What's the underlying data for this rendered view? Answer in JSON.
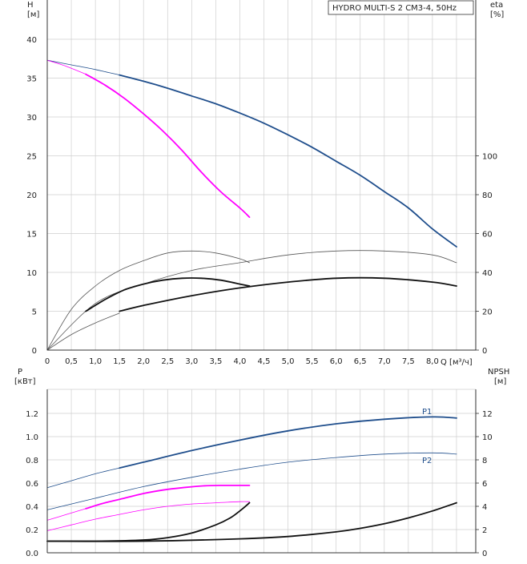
{
  "chart_data": [
    {
      "type": "line",
      "title": "HYDRO MULTI-S 2 CM3-4, 50Hz",
      "left_axis": {
        "label": "H",
        "unit": "[м]",
        "ylim": [
          0,
          40
        ],
        "ticks": [
          "0",
          "5",
          "10",
          "15",
          "20",
          "25",
          "30",
          "35",
          "40"
        ]
      },
      "right_axis": {
        "label": "eta",
        "unit": "[%]",
        "ylim": [
          0,
          160
        ],
        "ticks": [
          "0",
          "20",
          "40",
          "60",
          "80",
          "100"
        ]
      },
      "x_axis": {
        "label": "Q [м³/ч]",
        "xlim": [
          0,
          8.9
        ],
        "ticks": [
          "0",
          "0,5",
          "1,0",
          "1,5",
          "2,0",
          "2,5",
          "3,0",
          "3,5",
          "4,0",
          "4,5",
          "5,0",
          "5,5",
          "6,0",
          "6,5",
          "7,0",
          "7,5",
          "8,0"
        ]
      },
      "grid": true,
      "series": [
        {
          "name": "H full speed (thin)",
          "axis": "left",
          "color": "#1f4e8c",
          "width": 0.8,
          "x": [
            0,
            0.5,
            1.0,
            1.5
          ],
          "y": [
            37.3,
            36.7,
            36.1,
            35.4
          ]
        },
        {
          "name": "H full speed",
          "axis": "left",
          "color": "#1f4e8c",
          "width": 1.8,
          "x": [
            1.5,
            2.0,
            2.5,
            3.0,
            3.5,
            4.0,
            4.5,
            5.0,
            5.5,
            6.0,
            6.5,
            7.0,
            7.5,
            8.0,
            8.5
          ],
          "y": [
            35.4,
            34.6,
            33.7,
            32.7,
            31.7,
            30.5,
            29.2,
            27.7,
            26.1,
            24.3,
            22.5,
            20.4,
            18.3,
            15.6,
            13.3
          ]
        },
        {
          "name": "H reduced speed (thin)",
          "axis": "left",
          "color": "#ff00ff",
          "width": 0.8,
          "x": [
            0,
            0.4,
            0.8
          ],
          "y": [
            37.3,
            36.5,
            35.5
          ]
        },
        {
          "name": "H reduced speed",
          "axis": "left",
          "color": "#ff00ff",
          "width": 1.8,
          "x": [
            0.8,
            1.2,
            1.6,
            2.0,
            2.4,
            2.8,
            3.2,
            3.6,
            4.0,
            4.2
          ],
          "y": [
            35.5,
            34.1,
            32.4,
            30.4,
            28.2,
            25.7,
            22.9,
            20.4,
            18.3,
            17.1
          ]
        },
        {
          "name": "eta (thin, reduced)",
          "axis": "right",
          "color": "#555555",
          "width": 0.8,
          "x": [
            0,
            0.5,
            1.0,
            1.5,
            2.0,
            2.5,
            3.0,
            3.5,
            4.0,
            4.2
          ],
          "y": [
            0,
            21,
            33,
            41,
            46,
            50,
            51,
            50,
            47,
            45
          ]
        },
        {
          "name": "eta (thin, full)",
          "axis": "right",
          "color": "#555555",
          "width": 0.8,
          "x": [
            0,
            1.0,
            2.0,
            3.0,
            4.0,
            5.0,
            6.0,
            7.0,
            8.0,
            8.5
          ],
          "y": [
            0,
            24,
            34,
            41,
            45,
            49,
            51,
            51,
            49,
            45
          ]
        },
        {
          "name": "eta (thin, inner)",
          "axis": "right",
          "color": "#555555",
          "width": 0.8,
          "x": [
            0,
            0.5,
            1.0,
            1.5
          ],
          "y": [
            0,
            8,
            14,
            19
          ]
        },
        {
          "name": "eta reduced",
          "axis": "right",
          "color": "#111111",
          "width": 1.8,
          "x": [
            0.8,
            1.2,
            1.6,
            2.0,
            2.4,
            2.8,
            3.2,
            3.6,
            4.0,
            4.2
          ],
          "y": [
            20,
            26,
            31,
            34,
            36,
            37,
            37,
            36,
            34,
            33
          ]
        },
        {
          "name": "eta full",
          "axis": "right",
          "color": "#111111",
          "width": 1.8,
          "x": [
            1.5,
            2.0,
            3.0,
            4.0,
            5.0,
            6.0,
            7.0,
            8.0,
            8.5
          ],
          "y": [
            20,
            23,
            28,
            32,
            35,
            37,
            37,
            35,
            33
          ]
        }
      ]
    },
    {
      "type": "line",
      "left_axis": {
        "label": "P",
        "unit": "[кВт]",
        "ylim": [
          0,
          1.4
        ],
        "ticks": [
          "0.0",
          "0.2",
          "0.4",
          "0.6",
          "0.8",
          "1.0",
          "1.2"
        ]
      },
      "right_axis": {
        "label": "NPSH",
        "unit": "[м]",
        "ylim": [
          0,
          14
        ],
        "ticks": [
          "0",
          "2",
          "4",
          "6",
          "8",
          "10",
          "12"
        ]
      },
      "x_axis": {
        "xlim": [
          0,
          8.9
        ]
      },
      "grid": true,
      "labels": [
        {
          "text": "P1",
          "series": "P1"
        },
        {
          "text": "P2",
          "series": "P2"
        }
      ],
      "series": [
        {
          "name": "P1 thin",
          "axis": "left",
          "color": "#1f4e8c",
          "width": 0.8,
          "x": [
            0,
            0.5,
            1.0,
            1.5
          ],
          "y": [
            0.56,
            0.62,
            0.68,
            0.73
          ]
        },
        {
          "name": "P1",
          "axis": "left",
          "color": "#1f4e8c",
          "width": 1.8,
          "x": [
            1.5,
            2.0,
            3.0,
            4.0,
            5.0,
            6.0,
            7.0,
            8.0,
            8.5
          ],
          "y": [
            0.73,
            0.78,
            0.88,
            0.97,
            1.05,
            1.11,
            1.15,
            1.17,
            1.16
          ]
        },
        {
          "name": "P2",
          "axis": "left",
          "color": "#1f4e8c",
          "width": 0.8,
          "x": [
            0,
            1.0,
            2.0,
            3.0,
            4.0,
            5.0,
            6.0,
            7.0,
            8.0,
            8.5
          ],
          "y": [
            0.37,
            0.47,
            0.57,
            0.65,
            0.72,
            0.78,
            0.82,
            0.85,
            0.86,
            0.85
          ]
        },
        {
          "name": "P1 reduced thin",
          "axis": "left",
          "color": "#ff00ff",
          "width": 0.8,
          "x": [
            0,
            0.4,
            0.8
          ],
          "y": [
            0.28,
            0.33,
            0.38
          ]
        },
        {
          "name": "P1 reduced",
          "axis": "left",
          "color": "#ff00ff",
          "width": 1.8,
          "x": [
            0.8,
            1.2,
            1.6,
            2.0,
            2.4,
            2.8,
            3.2,
            3.6,
            4.0,
            4.2
          ],
          "y": [
            0.38,
            0.43,
            0.47,
            0.51,
            0.54,
            0.56,
            0.575,
            0.58,
            0.58,
            0.58
          ]
        },
        {
          "name": "P2 reduced",
          "axis": "left",
          "color": "#ff00ff",
          "width": 0.8,
          "x": [
            0,
            0.5,
            1.0,
            1.5,
            2.0,
            2.5,
            3.0,
            3.5,
            4.0,
            4.2
          ],
          "y": [
            0.19,
            0.24,
            0.29,
            0.33,
            0.37,
            0.4,
            0.42,
            0.43,
            0.44,
            0.44
          ]
        },
        {
          "name": "NPSH reduced",
          "axis": "right",
          "color": "#111111",
          "width": 1.8,
          "x": [
            0,
            1.0,
            2.0,
            2.5,
            3.0,
            3.5,
            3.8,
            4.0,
            4.2
          ],
          "y": [
            1.0,
            1.0,
            1.1,
            1.3,
            1.7,
            2.4,
            3.0,
            3.6,
            4.3
          ]
        },
        {
          "name": "NPSH full",
          "axis": "right",
          "color": "#111111",
          "width": 1.8,
          "x": [
            0,
            2.0,
            4.0,
            5.0,
            6.0,
            6.5,
            7.0,
            7.5,
            8.0,
            8.5
          ],
          "y": [
            1.0,
            1.0,
            1.2,
            1.4,
            1.8,
            2.1,
            2.5,
            3.0,
            3.6,
            4.3
          ]
        }
      ]
    }
  ]
}
